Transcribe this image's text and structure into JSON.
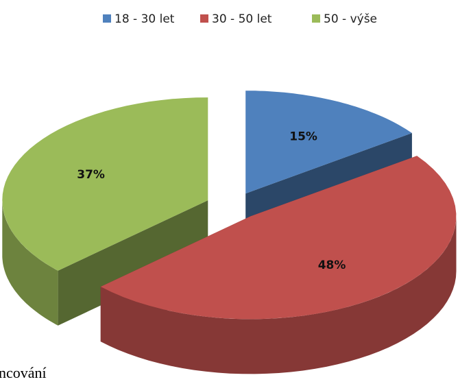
{
  "chart_data": {
    "type": "pie",
    "categories": [
      "18 - 30 let",
      "30 - 50 let",
      "50 - výše"
    ],
    "values": [
      15,
      48,
      37
    ],
    "value_labels": [
      "15%",
      "48%",
      "37%"
    ],
    "colors": [
      "#4f81bd",
      "#c0504d",
      "#9bbb59"
    ],
    "legend": "top"
  },
  "text_fragment": "ncování"
}
